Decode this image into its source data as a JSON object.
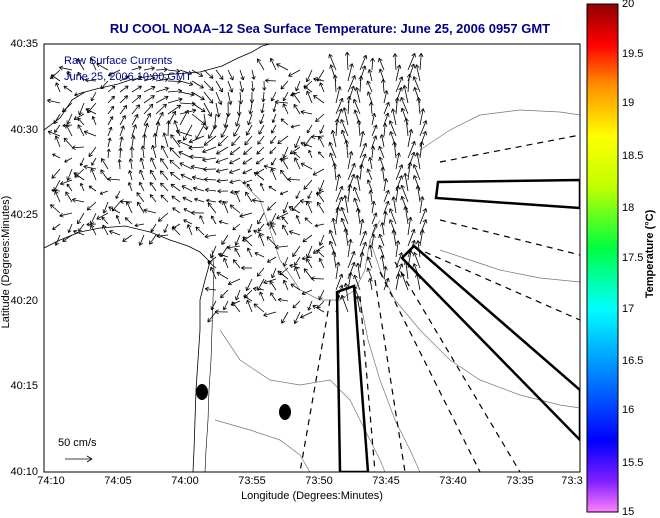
{
  "title": "RU COOL   NOAA–12  Sea Surface Temperature:  June 25, 2006 0957 GMT",
  "legend": {
    "line1": "Raw Surface Currents",
    "line2": "June 25, 2006 10:00 GMT",
    "scale_label": "50 cm/s"
  },
  "axes": {
    "x_title": "Longitude (Degrees:Minutes)",
    "y_title": "Latitude (Degrees:Minutes)",
    "x_ticks": [
      "74:10",
      "74:05",
      "74:00",
      "73:55",
      "73:50",
      "73:45",
      "73:40",
      "73:35",
      "73:3"
    ],
    "y_ticks": [
      "40:35",
      "40:30",
      "40:25",
      "40:20",
      "40:15",
      "40:10"
    ]
  },
  "colorbar": {
    "title": "Temperature (°C)",
    "labels": [
      "20",
      "19.5",
      "19",
      "18.5",
      "18",
      "17.5",
      "17",
      "16.5",
      "16",
      "15.5",
      "15"
    ],
    "range": [
      15,
      20
    ]
  },
  "colors": {
    "title": "#00008b",
    "legend_text": "#00008b"
  }
}
